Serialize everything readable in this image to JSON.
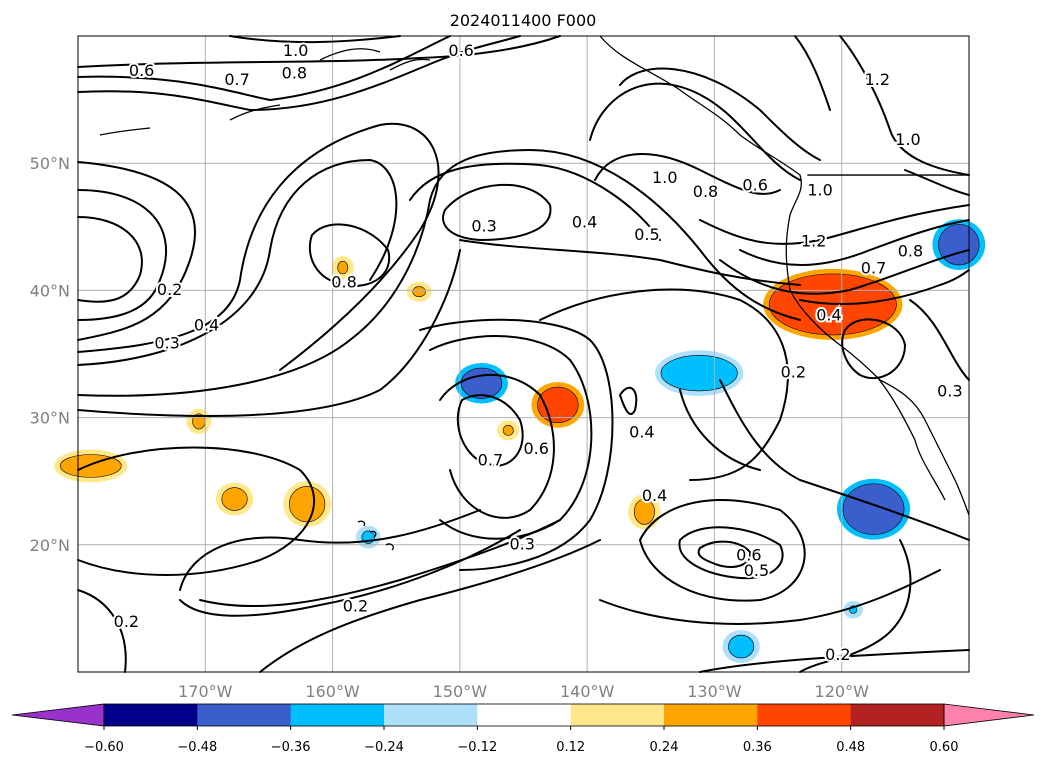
{
  "chart_data": {
    "type": "contour-map",
    "title": "2024011400 F000",
    "projection": "lat-lon",
    "extent": {
      "lon": [
        -180,
        -110
      ],
      "lat": [
        10,
        60
      ]
    },
    "grid": true,
    "x_ticks": [
      {
        "value": -170,
        "label": "170°W"
      },
      {
        "value": -160,
        "label": "160°W"
      },
      {
        "value": -150,
        "label": "150°W"
      },
      {
        "value": -140,
        "label": "140°W"
      },
      {
        "value": -130,
        "label": "130°W"
      },
      {
        "value": -120,
        "label": "120°W"
      }
    ],
    "y_ticks": [
      {
        "value": 50,
        "label": "50°N"
      },
      {
        "value": 40,
        "label": "40°N"
      },
      {
        "value": 30,
        "label": "30°N"
      },
      {
        "value": 20,
        "label": "20°N"
      }
    ],
    "colorbar": {
      "orientation": "horizontal",
      "extend": "both",
      "boundaries": [
        -0.6,
        -0.48,
        -0.36,
        -0.24,
        -0.12,
        0.12,
        0.24,
        0.36,
        0.48,
        0.6
      ],
      "colors": [
        "#9932cc",
        "#00008b",
        "#3a5fcd",
        "#00bfff",
        "#afe0fa",
        "#ffffff",
        "#ffe78a",
        "#ffa500",
        "#ff4500",
        "#b22222",
        "#ff82ab"
      ],
      "tick_labels": [
        "−0.60",
        "−0.48",
        "−0.36",
        "−0.24",
        "−0.12",
        "0.12",
        "0.24",
        "0.36",
        "0.48",
        "0.60"
      ]
    },
    "contour_labels": [
      {
        "text": "1.0",
        "lon": -162.9,
        "lat": 58.8
      },
      {
        "text": "0.6",
        "lon": -149.9,
        "lat": 58.8
      },
      {
        "text": "0.8",
        "lon": -163.0,
        "lat": 57.0
      },
      {
        "text": "0.6",
        "lon": -175.0,
        "lat": 57.2
      },
      {
        "text": "0.7",
        "lon": -167.5,
        "lat": 56.5
      },
      {
        "text": "1.2",
        "lon": -117.2,
        "lat": 56.5
      },
      {
        "text": "1.0",
        "lon": -114.8,
        "lat": 51.8
      },
      {
        "text": "1.0",
        "lon": -133.9,
        "lat": 48.8
      },
      {
        "text": "0.8",
        "lon": -130.7,
        "lat": 47.7
      },
      {
        "text": "0.6",
        "lon": -126.8,
        "lat": 48.2
      },
      {
        "text": "1.0",
        "lon": -121.7,
        "lat": 47.8
      },
      {
        "text": "1.2",
        "lon": -122.2,
        "lat": 43.8
      },
      {
        "text": "0.8",
        "lon": -114.6,
        "lat": 43.0
      },
      {
        "text": "0.7",
        "lon": -117.5,
        "lat": 41.7
      },
      {
        "text": "0.3",
        "lon": -148.1,
        "lat": 45.0
      },
      {
        "text": "0.4",
        "lon": -140.2,
        "lat": 45.3
      },
      {
        "text": "0.5",
        "lon": -135.3,
        "lat": 44.3
      },
      {
        "text": "0.8",
        "lon": -159.1,
        "lat": 40.6
      },
      {
        "text": "0.2",
        "lon": -172.8,
        "lat": 40.0
      },
      {
        "text": "0.4",
        "lon": -169.9,
        "lat": 37.2
      },
      {
        "text": "0.3",
        "lon": -173.0,
        "lat": 35.8
      },
      {
        "text": "0.4",
        "lon": -121.0,
        "lat": 38.0
      },
      {
        "text": "0.2",
        "lon": -123.8,
        "lat": 33.5
      },
      {
        "text": "0.3",
        "lon": -111.5,
        "lat": 32.0
      },
      {
        "text": "0.4",
        "lon": -135.7,
        "lat": 28.8
      },
      {
        "text": "0.6",
        "lon": -144.0,
        "lat": 27.5
      },
      {
        "text": "0.7",
        "lon": -147.6,
        "lat": 26.6
      },
      {
        "text": "0.4",
        "lon": -134.7,
        "lat": 23.8
      },
      {
        "text": "0.3",
        "lon": -145.1,
        "lat": 20.0
      },
      {
        "text": "0.6",
        "lon": -127.3,
        "lat": 19.1
      },
      {
        "text": "0.5",
        "lon": -126.7,
        "lat": 17.9
      },
      {
        "text": "0.2",
        "lon": -158.2,
        "lat": 15.1
      },
      {
        "text": "0.2",
        "lon": -176.2,
        "lat": 13.9
      },
      {
        "text": "0.2",
        "lon": -120.3,
        "lat": 11.3
      }
    ],
    "shaded_anomalies": [
      {
        "color": "#ff4500",
        "value_range": [
          0.36,
          0.48
        ],
        "lon": -120.7,
        "lat": 38.9,
        "rx_deg": 5.0,
        "ry_deg": 2.4
      },
      {
        "color": "#ff4500",
        "value_range": [
          0.36,
          0.48
        ],
        "lon": -142.3,
        "lat": 31.0,
        "rx_deg": 1.6,
        "ry_deg": 1.4
      },
      {
        "color": "#ffa500",
        "value_range": [
          0.24,
          0.36
        ],
        "lon": -162.0,
        "lat": 23.2,
        "rx_deg": 1.4,
        "ry_deg": 1.4
      },
      {
        "color": "#ffa500",
        "value_range": [
          0.24,
          0.36
        ],
        "lon": -167.7,
        "lat": 23.6,
        "rx_deg": 1.0,
        "ry_deg": 0.9
      },
      {
        "color": "#ffa500",
        "value_range": [
          0.24,
          0.36
        ],
        "lon": -179.0,
        "lat": 26.2,
        "rx_deg": 2.4,
        "ry_deg": 0.9
      },
      {
        "color": "#ffa500",
        "value_range": [
          0.24,
          0.36
        ],
        "lon": -135.5,
        "lat": 22.6,
        "rx_deg": 0.8,
        "ry_deg": 1.0
      },
      {
        "color": "#ffa500",
        "value_range": [
          0.24,
          0.36
        ],
        "lon": -153.2,
        "lat": 39.9,
        "rx_deg": 0.5,
        "ry_deg": 0.4
      },
      {
        "color": "#ffa500",
        "value_range": [
          0.24,
          0.36
        ],
        "lon": -159.2,
        "lat": 41.8,
        "rx_deg": 0.4,
        "ry_deg": 0.5
      },
      {
        "color": "#ffa500",
        "value_range": [
          0.24,
          0.36
        ],
        "lon": -170.5,
        "lat": 29.7,
        "rx_deg": 0.5,
        "ry_deg": 0.6
      },
      {
        "color": "#ffa500",
        "value_range": [
          0.24,
          0.36
        ],
        "lon": -146.2,
        "lat": 29.0,
        "rx_deg": 0.4,
        "ry_deg": 0.4
      },
      {
        "color": "#3a5fcd",
        "value_range": [
          -0.48,
          -0.36
        ],
        "lon": -117.5,
        "lat": 22.8,
        "rx_deg": 2.4,
        "ry_deg": 2.0
      },
      {
        "color": "#3a5fcd",
        "value_range": [
          -0.48,
          -0.36
        ],
        "lon": -148.3,
        "lat": 32.7,
        "rx_deg": 1.6,
        "ry_deg": 1.2
      },
      {
        "color": "#3a5fcd",
        "value_range": [
          -0.48,
          -0.36
        ],
        "lon": -110.8,
        "lat": 43.6,
        "rx_deg": 1.6,
        "ry_deg": 1.6
      },
      {
        "color": "#00bfff",
        "value_range": [
          -0.36,
          -0.24
        ],
        "lon": -131.2,
        "lat": 33.5,
        "rx_deg": 3.0,
        "ry_deg": 1.4
      },
      {
        "color": "#00bfff",
        "value_range": [
          -0.36,
          -0.24
        ],
        "lon": -127.9,
        "lat": 12.0,
        "rx_deg": 1.0,
        "ry_deg": 0.9
      },
      {
        "color": "#00bfff",
        "value_range": [
          -0.36,
          -0.24
        ],
        "lon": -157.2,
        "lat": 20.6,
        "rx_deg": 0.5,
        "ry_deg": 0.5
      },
      {
        "color": "#00bfff",
        "value_range": [
          -0.36,
          -0.24
        ],
        "lon": -119.1,
        "lat": 14.9,
        "rx_deg": 0.3,
        "ry_deg": 0.3
      }
    ]
  }
}
